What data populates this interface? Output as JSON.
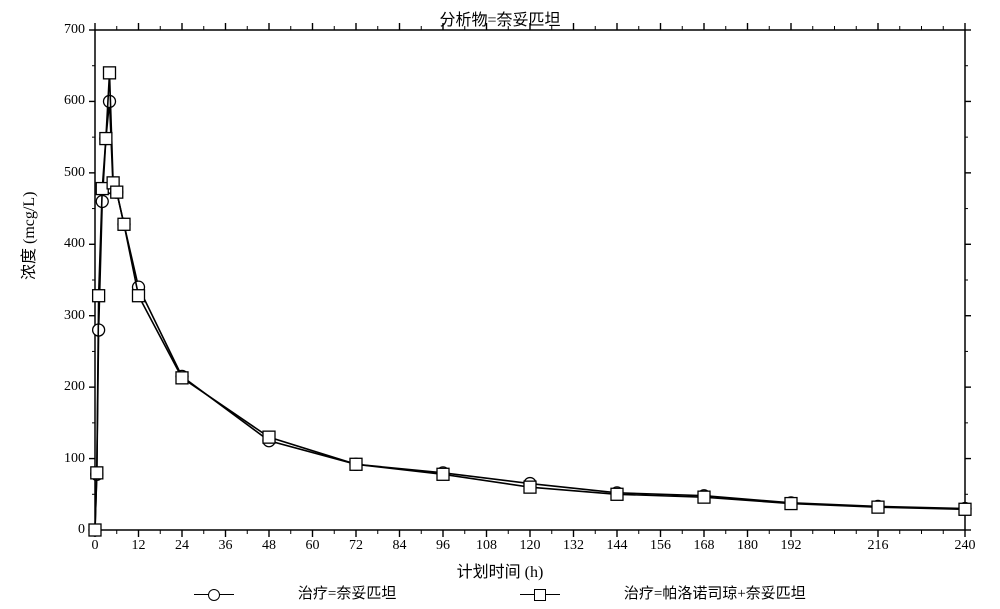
{
  "chart": {
    "type": "line",
    "title": "分析物=奈妥匹坦",
    "xlabel": "计划时间 (h)",
    "ylabel": "浓度 (mcg/L)",
    "xlim": [
      0,
      240
    ],
    "ylim": [
      0,
      700
    ],
    "x_ticks": [
      0,
      12,
      24,
      36,
      48,
      60,
      72,
      84,
      96,
      108,
      120,
      132,
      144,
      156,
      168,
      180,
      192,
      216,
      240
    ],
    "y_ticks": [
      0,
      100,
      200,
      300,
      400,
      500,
      600,
      700
    ],
    "minor_x_ticks_between": 1,
    "background_color": "#ffffff",
    "axis_color": "#000000",
    "title_fontsize": 16,
    "label_fontsize": 16,
    "tick_fontsize": 14,
    "line_width": 1.6,
    "marker_size": 12,
    "series": [
      {
        "name": "治疗=奈妥匹坦",
        "marker": "circle",
        "color": "#000000",
        "marker_fill": "#ffffff",
        "x": [
          0,
          0.5,
          1,
          2,
          3,
          4,
          5,
          6,
          8,
          12,
          24,
          48,
          72,
          96,
          120,
          144,
          168,
          192,
          216,
          240
        ],
        "y": [
          0,
          78,
          280,
          460,
          548,
          600,
          478,
          473,
          428,
          340,
          215,
          125,
          92,
          80,
          65,
          52,
          48,
          38,
          33,
          30
        ]
      },
      {
        "name": "治疗=帕洛诺司琼+奈妥匹坦",
        "marker": "square",
        "color": "#000000",
        "marker_fill": "#ffffff",
        "x": [
          0,
          0.5,
          1,
          2,
          3,
          4,
          5,
          6,
          8,
          12,
          24,
          48,
          72,
          96,
          120,
          144,
          168,
          192,
          216,
          240
        ],
        "y": [
          0,
          80,
          328,
          478,
          548,
          640,
          486,
          473,
          428,
          328,
          213,
          130,
          92,
          78,
          60,
          50,
          46,
          37,
          32,
          29
        ]
      }
    ],
    "legend": [
      {
        "marker": "circle",
        "label": "治疗=奈妥匹坦"
      },
      {
        "marker": "square",
        "label": "治疗=帕洛诺司琼+奈妥匹坦"
      }
    ]
  }
}
